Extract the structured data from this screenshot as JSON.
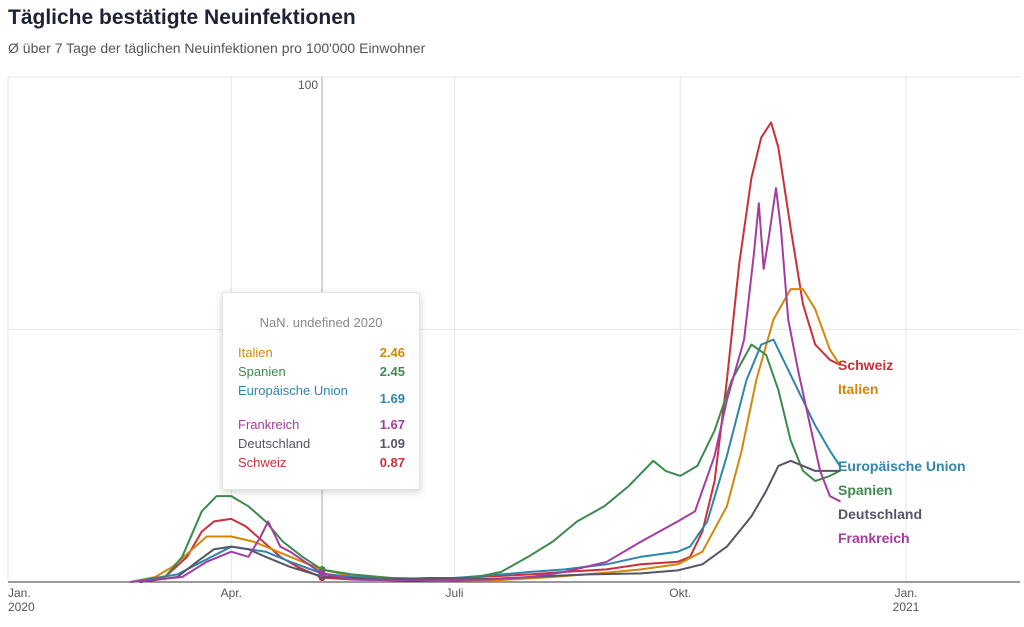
{
  "header": {
    "title": "Tägliche bestätigte Neuinfektionen",
    "subtitle": "Ø über 7 Tage der täglichen Neuinfektionen pro 100'000 Einwohner"
  },
  "tooltip": {
    "title": "NaN. undefined 2020",
    "rows": [
      {
        "name": "Italien",
        "value": "2.46",
        "color": "#d4860b"
      },
      {
        "name": "Spanien",
        "value": "2.45",
        "color": "#3d8a4f"
      },
      {
        "name": "Europäische Union",
        "value": "1.69",
        "color": "#2e86ab"
      },
      {
        "name": "Frankreich",
        "value": "1.67",
        "color": "#a53ca0"
      },
      {
        "name": "Deutschland",
        "value": "1.09",
        "color": "#555566"
      },
      {
        "name": "Schweiz",
        "value": "0.87",
        "color": "#c9303a"
      }
    ]
  },
  "chart_data": {
    "type": "line",
    "x_axis": {
      "ticks": [
        {
          "date": "2020-01-01",
          "label": "Jan.",
          "sublabel": "2020"
        },
        {
          "date": "2020-04-01",
          "label": "Apr.",
          "sublabel": ""
        },
        {
          "date": "2020-07-01",
          "label": "Juli",
          "sublabel": ""
        },
        {
          "date": "2020-10-01",
          "label": "Okt.",
          "sublabel": ""
        },
        {
          "date": "2021-01-01",
          "label": "Jan.",
          "sublabel": "2021"
        }
      ]
    },
    "y_axis": {
      "ylim": [
        0,
        100
      ],
      "tick_values": [
        50,
        100
      ],
      "tick_labels": [
        "",
        "100"
      ]
    },
    "grid": true,
    "cursor_date": "2020-05-08",
    "series": [
      {
        "name": "Schweiz",
        "color": "#c9303a",
        "points": [
          [
            "2020-02-24",
            0
          ],
          [
            "2020-03-05",
            1
          ],
          [
            "2020-03-14",
            5
          ],
          [
            "2020-03-20",
            10
          ],
          [
            "2020-03-25",
            12
          ],
          [
            "2020-04-01",
            12.5
          ],
          [
            "2020-04-07",
            11
          ],
          [
            "2020-04-14",
            8
          ],
          [
            "2020-04-21",
            5
          ],
          [
            "2020-04-28",
            3
          ],
          [
            "2020-05-08",
            0.87
          ],
          [
            "2020-05-20",
            0.5
          ],
          [
            "2020-06-15",
            0.3
          ],
          [
            "2020-07-01",
            0.8
          ],
          [
            "2020-07-20",
            1.2
          ],
          [
            "2020-08-01",
            1.5
          ],
          [
            "2020-08-15",
            2
          ],
          [
            "2020-09-01",
            2.5
          ],
          [
            "2020-09-15",
            3.5
          ],
          [
            "2020-09-30",
            4
          ],
          [
            "2020-10-05",
            5
          ],
          [
            "2020-10-10",
            10
          ],
          [
            "2020-10-15",
            20
          ],
          [
            "2020-10-20",
            40
          ],
          [
            "2020-10-25",
            63
          ],
          [
            "2020-10-30",
            80
          ],
          [
            "2020-11-03",
            88
          ],
          [
            "2020-11-07",
            91
          ],
          [
            "2020-11-10",
            86
          ],
          [
            "2020-11-15",
            70
          ],
          [
            "2020-11-20",
            55
          ],
          [
            "2020-11-25",
            47
          ],
          [
            "2020-12-01",
            44
          ],
          [
            "2020-12-05",
            43
          ]
        ]
      },
      {
        "name": "Italien",
        "color": "#d4860b",
        "points": [
          [
            "2020-02-20",
            0
          ],
          [
            "2020-03-01",
            1
          ],
          [
            "2020-03-08",
            3
          ],
          [
            "2020-03-15",
            6
          ],
          [
            "2020-03-22",
            9
          ],
          [
            "2020-04-01",
            9
          ],
          [
            "2020-04-10",
            8
          ],
          [
            "2020-04-20",
            6
          ],
          [
            "2020-04-30",
            4
          ],
          [
            "2020-05-08",
            2.46
          ],
          [
            "2020-05-20",
            1.2
          ],
          [
            "2020-06-10",
            0.5
          ],
          [
            "2020-07-01",
            0.3
          ],
          [
            "2020-07-20",
            0.4
          ],
          [
            "2020-08-10",
            1
          ],
          [
            "2020-08-31",
            1.8
          ],
          [
            "2020-09-15",
            2.5
          ],
          [
            "2020-09-30",
            3.5
          ],
          [
            "2020-10-10",
            6
          ],
          [
            "2020-10-20",
            15
          ],
          [
            "2020-10-26",
            26
          ],
          [
            "2020-11-01",
            40
          ],
          [
            "2020-11-08",
            52
          ],
          [
            "2020-11-15",
            58
          ],
          [
            "2020-11-20",
            58
          ],
          [
            "2020-11-25",
            54
          ],
          [
            "2020-12-01",
            46
          ],
          [
            "2020-12-05",
            43
          ]
        ]
      },
      {
        "name": "Europäische Union",
        "color": "#2e86ab",
        "points": [
          [
            "2020-02-20",
            0
          ],
          [
            "2020-03-10",
            1.5
          ],
          [
            "2020-03-20",
            4
          ],
          [
            "2020-03-28",
            6
          ],
          [
            "2020-04-01",
            7
          ],
          [
            "2020-04-08",
            6.5
          ],
          [
            "2020-04-15",
            6
          ],
          [
            "2020-04-25",
            4
          ],
          [
            "2020-05-08",
            1.69
          ],
          [
            "2020-05-20",
            1
          ],
          [
            "2020-06-15",
            0.7
          ],
          [
            "2020-07-01",
            0.8
          ],
          [
            "2020-07-20",
            1.5
          ],
          [
            "2020-08-01",
            2
          ],
          [
            "2020-08-15",
            2.5
          ],
          [
            "2020-09-01",
            3.5
          ],
          [
            "2020-09-15",
            5
          ],
          [
            "2020-09-30",
            6
          ],
          [
            "2020-10-05",
            7
          ],
          [
            "2020-10-12",
            12
          ],
          [
            "2020-10-20",
            25
          ],
          [
            "2020-10-28",
            40
          ],
          [
            "2020-11-03",
            47
          ],
          [
            "2020-11-08",
            48
          ],
          [
            "2020-11-12",
            44
          ],
          [
            "2020-11-18",
            38
          ],
          [
            "2020-11-25",
            31
          ],
          [
            "2020-12-01",
            26
          ],
          [
            "2020-12-05",
            23
          ]
        ]
      },
      {
        "name": "Spanien",
        "color": "#3d8a4f",
        "points": [
          [
            "2020-02-24",
            0
          ],
          [
            "2020-03-05",
            1
          ],
          [
            "2020-03-12",
            5
          ],
          [
            "2020-03-20",
            14
          ],
          [
            "2020-03-26",
            17
          ],
          [
            "2020-04-01",
            17
          ],
          [
            "2020-04-08",
            15
          ],
          [
            "2020-04-15",
            12
          ],
          [
            "2020-04-22",
            8
          ],
          [
            "2020-04-30",
            5
          ],
          [
            "2020-05-08",
            2.45
          ],
          [
            "2020-05-20",
            1.5
          ],
          [
            "2020-06-10",
            0.6
          ],
          [
            "2020-06-25",
            0.5
          ],
          [
            "2020-07-10",
            1
          ],
          [
            "2020-07-20",
            2
          ],
          [
            "2020-07-31",
            5
          ],
          [
            "2020-08-10",
            8
          ],
          [
            "2020-08-20",
            12
          ],
          [
            "2020-08-31",
            15
          ],
          [
            "2020-09-10",
            19
          ],
          [
            "2020-09-20",
            24
          ],
          [
            "2020-09-25",
            22
          ],
          [
            "2020-10-01",
            21
          ],
          [
            "2020-10-08",
            23
          ],
          [
            "2020-10-15",
            30
          ],
          [
            "2020-10-22",
            40
          ],
          [
            "2020-10-30",
            47
          ],
          [
            "2020-11-05",
            45
          ],
          [
            "2020-11-10",
            38
          ],
          [
            "2020-11-15",
            28
          ],
          [
            "2020-11-20",
            22
          ],
          [
            "2020-11-25",
            20
          ],
          [
            "2020-12-01",
            21
          ],
          [
            "2020-12-05",
            22
          ]
        ]
      },
      {
        "name": "Deutschland",
        "color": "#555566",
        "points": [
          [
            "2020-02-24",
            0
          ],
          [
            "2020-03-10",
            1
          ],
          [
            "2020-03-18",
            4
          ],
          [
            "2020-03-25",
            6.5
          ],
          [
            "2020-04-01",
            7
          ],
          [
            "2020-04-08",
            6.5
          ],
          [
            "2020-04-15",
            5
          ],
          [
            "2020-04-25",
            3
          ],
          [
            "2020-05-08",
            1.09
          ],
          [
            "2020-06-01",
            0.5
          ],
          [
            "2020-06-22",
            0.8
          ],
          [
            "2020-07-15",
            0.6
          ],
          [
            "2020-08-10",
            1.2
          ],
          [
            "2020-08-25",
            1.5
          ],
          [
            "2020-09-15",
            1.7
          ],
          [
            "2020-09-30",
            2.3
          ],
          [
            "2020-10-10",
            3.5
          ],
          [
            "2020-10-20",
            7
          ],
          [
            "2020-10-30",
            13
          ],
          [
            "2020-11-05",
            18
          ],
          [
            "2020-11-10",
            23
          ],
          [
            "2020-11-15",
            24
          ],
          [
            "2020-11-20",
            23
          ],
          [
            "2020-11-25",
            22
          ],
          [
            "2020-12-01",
            22
          ],
          [
            "2020-12-05",
            22
          ]
        ]
      },
      {
        "name": "Frankreich",
        "color": "#a53ca0",
        "points": [
          [
            "2020-02-20",
            0
          ],
          [
            "2020-03-12",
            1
          ],
          [
            "2020-03-22",
            4
          ],
          [
            "2020-04-01",
            6
          ],
          [
            "2020-04-08",
            5
          ],
          [
            "2020-04-13",
            9
          ],
          [
            "2020-04-16",
            12
          ],
          [
            "2020-04-18",
            10
          ],
          [
            "2020-04-21",
            7
          ],
          [
            "2020-04-25",
            6
          ],
          [
            "2020-05-01",
            4
          ],
          [
            "2020-05-08",
            1.67
          ],
          [
            "2020-05-20",
            0.5
          ],
          [
            "2020-06-15",
            0.3
          ],
          [
            "2020-07-15",
            0.5
          ],
          [
            "2020-08-01",
            1
          ],
          [
            "2020-08-15",
            2
          ],
          [
            "2020-09-01",
            4
          ],
          [
            "2020-09-15",
            8
          ],
          [
            "2020-09-30",
            12
          ],
          [
            "2020-10-07",
            14
          ],
          [
            "2020-10-15",
            25
          ],
          [
            "2020-10-20",
            36
          ],
          [
            "2020-10-27",
            48
          ],
          [
            "2020-10-31",
            65
          ],
          [
            "2020-11-02",
            75
          ],
          [
            "2020-11-04",
            62
          ],
          [
            "2020-11-06",
            68
          ],
          [
            "2020-11-09",
            78
          ],
          [
            "2020-11-11",
            70
          ],
          [
            "2020-11-14",
            52
          ],
          [
            "2020-11-18",
            42
          ],
          [
            "2020-11-22",
            33
          ],
          [
            "2020-11-27",
            22
          ],
          [
            "2020-12-01",
            17
          ],
          [
            "2020-12-05",
            16
          ]
        ]
      }
    ]
  }
}
